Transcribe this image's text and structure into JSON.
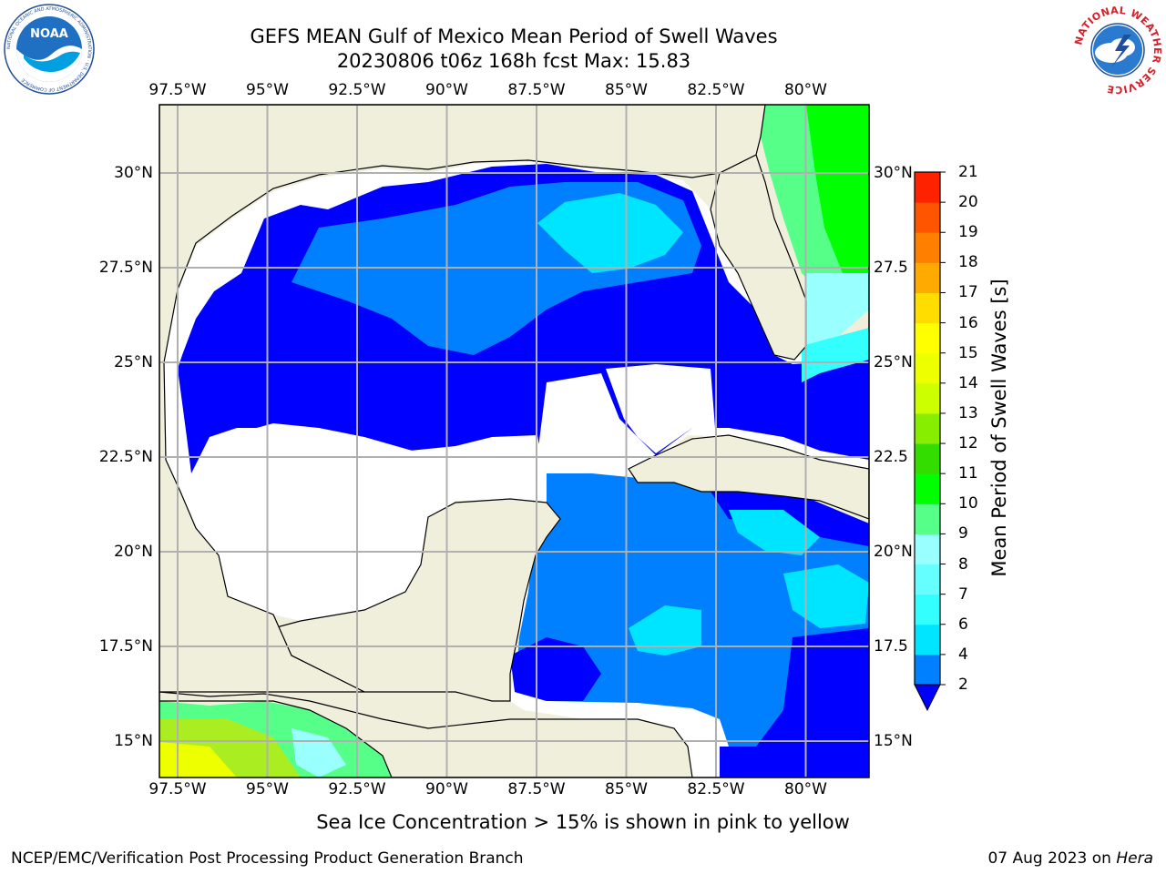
{
  "header": {
    "title_line1": "GEFS MEAN Gulf of Mexico Mean Period of Swell Waves",
    "title_line2": "20230806 t06z 168h fcst   Max: 15.83"
  },
  "logos": {
    "left": {
      "name": "NOAA",
      "ring_text": "NATIONAL OCEANIC AND ATMOSPHERIC ADMINISTRATION · U.S. DEPARTMENT OF COMMERCE"
    },
    "right": {
      "name": "NATIONAL WEATHER SERVICE"
    }
  },
  "axes": {
    "lon_ticks": [
      "97.5°W",
      "95°W",
      "92.5°W",
      "90°W",
      "87.5°W",
      "85°W",
      "82.5°W",
      "80°W"
    ],
    "lat_ticks_left": [
      "30°N",
      "27.5°N",
      "25°N",
      "22.5°N",
      "20°N",
      "17.5°N",
      "15°N"
    ],
    "lat_ticks_right": [
      "30°N",
      "27.5",
      "25°N",
      "22.5",
      "20°N",
      "17.5",
      "15°N"
    ]
  },
  "colorbar": {
    "title": "Mean Period of Swell Waves [s]",
    "labels": [
      "2",
      "4",
      "6",
      "7",
      "8",
      "9",
      "10",
      "11",
      "12",
      "13",
      "14",
      "15",
      "16",
      "17",
      "18",
      "19",
      "20",
      "21"
    ],
    "colors": [
      "#0080ff",
      "#00e5ff",
      "#33ffff",
      "#66ffff",
      "#99ffff",
      "#55ff88",
      "#00ff00",
      "#33dd00",
      "#88ee00",
      "#ccff00",
      "#eeff00",
      "#ffff00",
      "#ffdd00",
      "#ffaa00",
      "#ff8000",
      "#ff5500",
      "#ff2200",
      "#ff0000"
    ],
    "under_color": "#0000ff"
  },
  "footer": {
    "footnote": "Sea Ice Concentration > 15% is shown in pink to yellow",
    "credit": "NCEP/EMC/Verification Post Processing Product Generation Branch",
    "date_prefix": "07 Aug 2023 on ",
    "host": "Hera"
  },
  "colors": {
    "land": "#efefdc",
    "ocean_missing": "#ffffff",
    "grid": "#b0b0b0"
  }
}
